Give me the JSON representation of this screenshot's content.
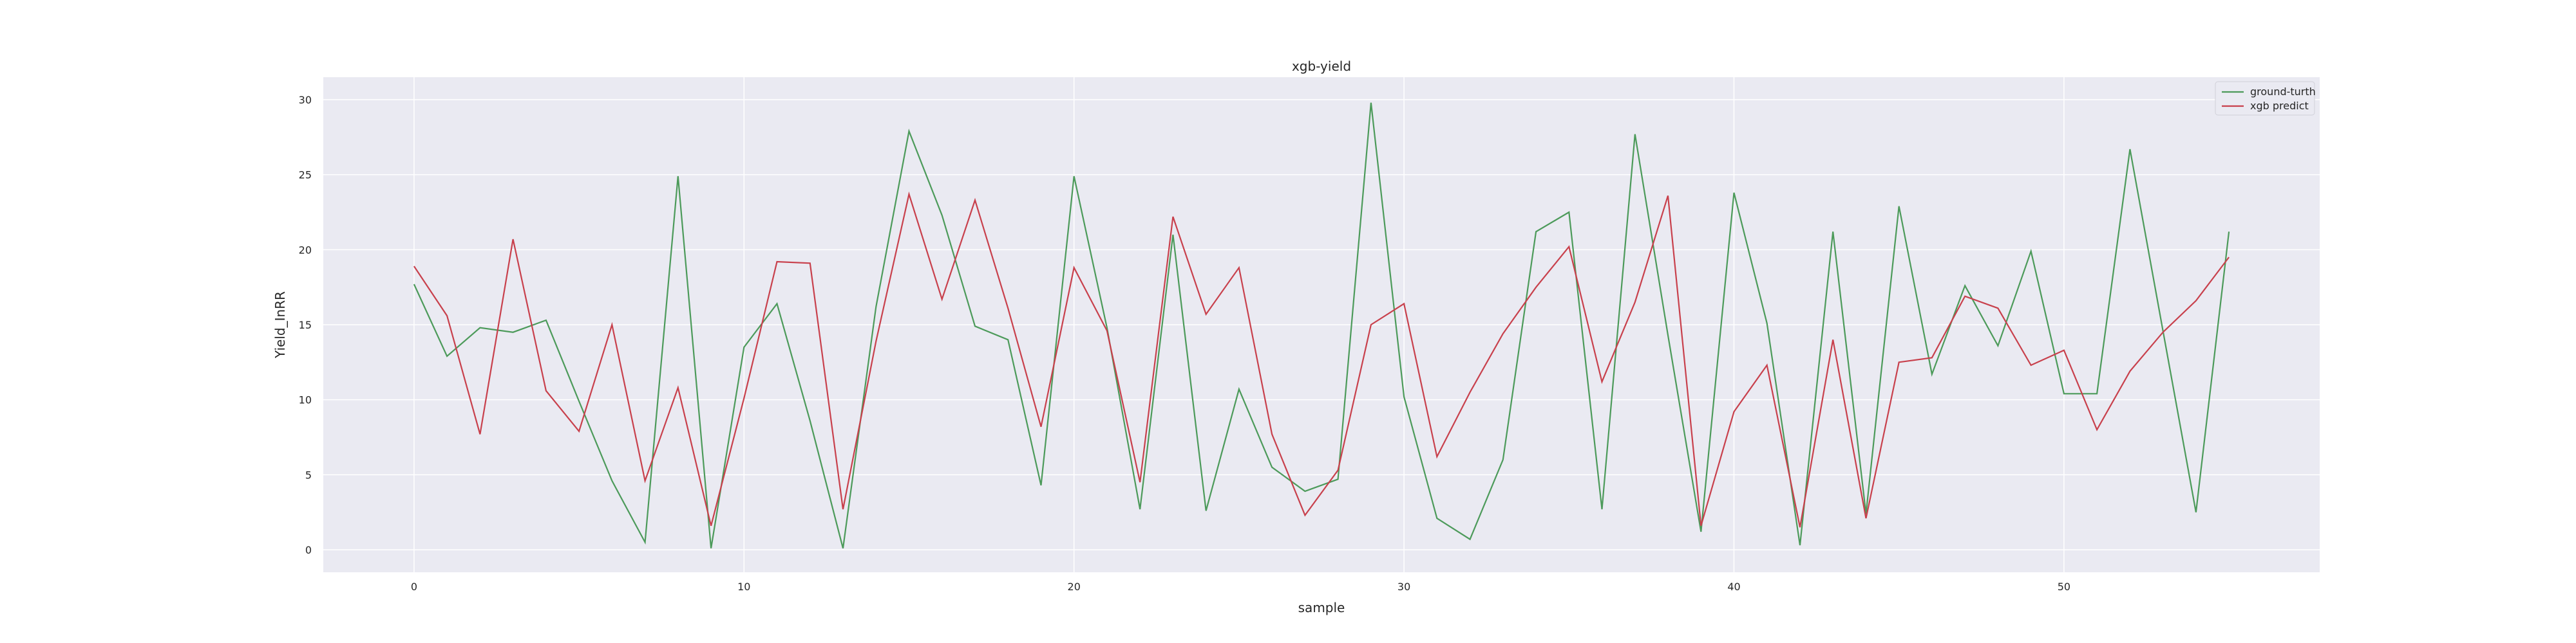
{
  "chart_data": {
    "type": "line",
    "title": "xgb-yield",
    "xlabel": "sample",
    "ylabel": "Yield_InRR",
    "xlim": [
      -2.75,
      57.75
    ],
    "ylim": [
      -1.5,
      31.5
    ],
    "x_ticks": [
      0,
      10,
      20,
      30,
      40,
      50
    ],
    "y_ticks": [
      0,
      5,
      10,
      15,
      20,
      25,
      30
    ],
    "grid": true,
    "legend_position": "top-right",
    "colors": {
      "ground": "#4c9a5a",
      "predict": "#c8404c",
      "plot_bg": "#eaeaf2",
      "grid": "#ffffff"
    },
    "x": [
      0,
      1,
      2,
      3,
      4,
      5,
      6,
      7,
      8,
      9,
      10,
      11,
      12,
      13,
      14,
      15,
      16,
      17,
      18,
      19,
      20,
      21,
      22,
      23,
      24,
      25,
      26,
      27,
      28,
      29,
      30,
      31,
      32,
      33,
      34,
      35,
      36,
      37,
      38,
      39,
      40,
      41,
      42,
      43,
      44,
      45,
      46,
      47,
      48,
      49,
      50,
      51,
      52,
      53,
      54,
      55
    ],
    "series": [
      {
        "name": "ground-turth",
        "color_key": "ground",
        "values": [
          17.7,
          12.9,
          14.8,
          14.5,
          15.3,
          9.9,
          4.6,
          0.5,
          24.9,
          0.1,
          13.5,
          16.4,
          8.6,
          0.1,
          16.2,
          27.9,
          22.3,
          14.9,
          14.0,
          4.3,
          24.9,
          14.8,
          2.7,
          21.0,
          2.6,
          10.7,
          5.5,
          3.9,
          4.7,
          29.8,
          10.2,
          2.1,
          0.7,
          6.0,
          21.2,
          22.5,
          2.7,
          27.7,
          14.3,
          1.2,
          23.8,
          15.1,
          0.3,
          21.2,
          2.4,
          22.9,
          11.7,
          17.6,
          13.6,
          19.9,
          10.4,
          10.4,
          26.7,
          14.6,
          2.5,
          21.2
        ]
      },
      {
        "name": "xgb predict",
        "color_key": "predict",
        "values": [
          18.9,
          15.6,
          7.7,
          20.7,
          10.6,
          7.9,
          15.0,
          4.6,
          10.8,
          1.6,
          10.1,
          19.2,
          19.1,
          2.7,
          13.9,
          23.7,
          16.7,
          23.3,
          16.1,
          8.2,
          18.8,
          14.6,
          4.5,
          22.2,
          15.7,
          18.8,
          7.7,
          2.3,
          5.3,
          15.0,
          16.4,
          6.2,
          10.5,
          14.4,
          17.5,
          20.2,
          11.2,
          16.5,
          23.6,
          1.6,
          9.2,
          12.3,
          1.5,
          14.0,
          2.1,
          12.5,
          12.8,
          16.9,
          16.1,
          12.3,
          13.3,
          8.0,
          11.9,
          14.5,
          16.6,
          19.5
        ]
      }
    ]
  }
}
